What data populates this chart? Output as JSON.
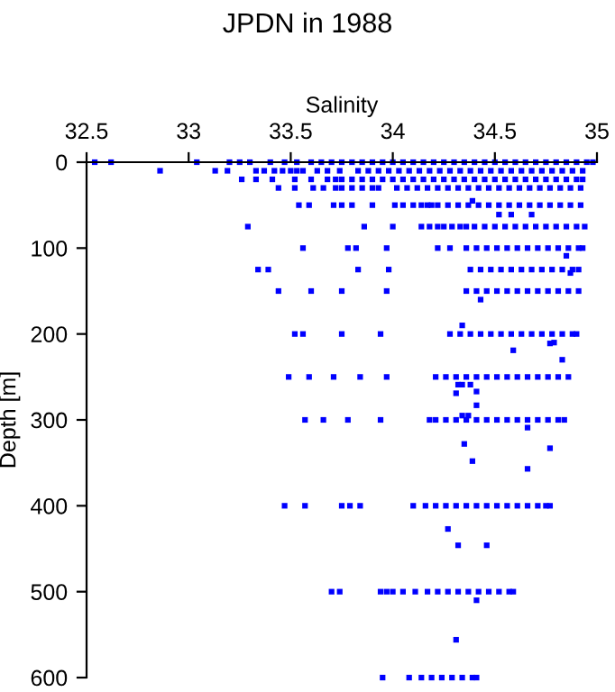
{
  "chart_data": {
    "type": "scatter",
    "title": "JPDN in 1988",
    "xlabel": "Salinity",
    "ylabel": "Depth [m]",
    "xlim": [
      32.5,
      35
    ],
    "xticks": [
      32.5,
      33,
      33.5,
      34,
      34.5,
      35
    ],
    "ylim": [
      600,
      0
    ],
    "yticks": [
      0,
      100,
      200,
      300,
      400,
      500,
      600
    ],
    "marker": "square",
    "grid": false,
    "series": [
      {
        "color": "#0000ff",
        "x": [
          32.54,
          32.62,
          33.04,
          33.2,
          33.25,
          33.3,
          33.4,
          33.47,
          33.53,
          33.6,
          33.65,
          33.7,
          33.75,
          33.8,
          33.85,
          33.9,
          33.95,
          34,
          34.05,
          34.1,
          34.15,
          34.2,
          34.25,
          34.3,
          34.35,
          34.4,
          34.45,
          34.5,
          34.55,
          34.6,
          34.65,
          34.7,
          34.75,
          34.8,
          34.85,
          34.9,
          34.95,
          34.98
        ],
        "values": [
          0,
          0,
          0,
          0,
          0,
          0,
          0,
          0,
          0,
          0,
          0,
          0,
          0,
          0,
          0,
          0,
          0,
          0,
          0,
          0,
          0,
          0,
          0,
          0,
          0,
          0,
          0,
          0,
          0,
          0,
          0,
          0,
          0,
          0,
          0,
          0,
          0,
          0
        ]
      },
      {
        "color": "#0000ff",
        "x": [
          32.86,
          33.13,
          33.19,
          33.33,
          33.37,
          33.42,
          33.46,
          33.5,
          33.53,
          33.56,
          33.63,
          33.68,
          33.74,
          33.83,
          33.88,
          33.93,
          33.98,
          34.03,
          34.08,
          34.13,
          34.18,
          34.23,
          34.28,
          34.33,
          34.38,
          34.43,
          34.48,
          34.53,
          34.58,
          34.63,
          34.68,
          34.73,
          34.78,
          34.83,
          34.88,
          34.93
        ],
        "values": [
          10,
          10,
          10,
          10,
          10,
          10,
          10,
          10,
          10,
          10,
          10,
          10,
          10,
          10,
          10,
          10,
          10,
          10,
          10,
          10,
          10,
          10,
          10,
          10,
          10,
          10,
          10,
          10,
          10,
          10,
          10,
          10,
          10,
          10,
          10,
          10
        ]
      },
      {
        "color": "#0000ff",
        "x": [
          33.26,
          33.33,
          33.41,
          33.52,
          33.6,
          33.68,
          33.72,
          33.75,
          33.8,
          33.85,
          33.9,
          33.95,
          34,
          34.05,
          34.1,
          34.15,
          34.2,
          34.25,
          34.3,
          34.35,
          34.4,
          34.45,
          34.5,
          34.55,
          34.6,
          34.65,
          34.7,
          34.75,
          34.8,
          34.85,
          34.9,
          34.93
        ],
        "values": [
          20,
          20,
          20,
          20,
          20,
          20,
          20,
          20,
          20,
          20,
          20,
          20,
          20,
          20,
          20,
          20,
          20,
          20,
          20,
          20,
          20,
          20,
          20,
          20,
          20,
          20,
          20,
          20,
          20,
          20,
          20,
          20
        ]
      },
      {
        "color": "#0000ff",
        "x": [
          33.44,
          33.52,
          33.61,
          33.66,
          33.72,
          33.75,
          33.8,
          33.85,
          33.9,
          33.93,
          34.02,
          34.07,
          34.12,
          34.17,
          34.22,
          34.27,
          34.32,
          34.37,
          34.42,
          34.47,
          34.52,
          34.57,
          34.62,
          34.67,
          34.72,
          34.77,
          34.82,
          34.87,
          34.92
        ],
        "values": [
          30,
          30,
          30,
          30,
          30,
          30,
          30,
          30,
          30,
          30,
          30,
          30,
          30,
          30,
          30,
          30,
          30,
          30,
          30,
          30,
          30,
          30,
          30,
          30,
          30,
          30,
          30,
          30,
          30
        ]
      },
      {
        "color": "#0000ff",
        "x": [
          33.54,
          33.59,
          33.71,
          33.75,
          33.8,
          33.9,
          34.01,
          34.05,
          34.1,
          34.14,
          34.17,
          34.19,
          34.22,
          34.27,
          34.32,
          34.37,
          34.42,
          34.47,
          34.52,
          34.57,
          34.62,
          34.67,
          34.72,
          34.77,
          34.82,
          34.87,
          34.92
        ],
        "values": [
          50,
          50,
          50,
          50,
          50,
          50,
          50,
          50,
          50,
          50,
          50,
          50,
          50,
          50,
          50,
          50,
          50,
          50,
          50,
          50,
          50,
          50,
          50,
          50,
          50,
          50,
          50
        ]
      },
      {
        "color": "#0000ff",
        "x": [
          33.29,
          33.86,
          34,
          34.14,
          34.18,
          34.22,
          34.25,
          34.29,
          34.33,
          34.36,
          34.4,
          34.45,
          34.5,
          34.55,
          34.6,
          34.65,
          34.7,
          34.75,
          34.8,
          34.85,
          34.9,
          34.94
        ],
        "values": [
          75,
          75,
          75,
          75,
          75,
          75,
          75,
          75,
          75,
          75,
          75,
          75,
          75,
          75,
          75,
          75,
          75,
          75,
          75,
          75,
          75,
          75
        ]
      },
      {
        "color": "#0000ff",
        "x": [
          33.56,
          33.78,
          33.82,
          33.97,
          34.22,
          34.28,
          34.36,
          34.41,
          34.46,
          34.51,
          34.56,
          34.61,
          34.66,
          34.71,
          34.76,
          34.81,
          34.86,
          34.91,
          34.93
        ],
        "values": [
          100,
          100,
          100,
          100,
          100,
          100,
          100,
          100,
          100,
          100,
          100,
          100,
          100,
          100,
          100,
          100,
          100,
          100,
          100
        ]
      },
      {
        "color": "#0000ff",
        "x": [
          33.34,
          33.39,
          33.83,
          33.98,
          34.38,
          34.43,
          34.48,
          34.53,
          34.58,
          34.63,
          34.68,
          34.73,
          34.78,
          34.83,
          34.88,
          34.91
        ],
        "values": [
          125,
          125,
          125,
          125,
          125,
          125,
          125,
          125,
          125,
          125,
          125,
          125,
          125,
          125,
          125,
          125
        ]
      },
      {
        "color": "#0000ff",
        "x": [
          33.44,
          33.6,
          33.75,
          33.97,
          34.36,
          34.41,
          34.46,
          34.51,
          34.56,
          34.61,
          34.66,
          34.71,
          34.76,
          34.81,
          34.86,
          34.91
        ],
        "values": [
          150,
          150,
          150,
          150,
          150,
          150,
          150,
          150,
          150,
          150,
          150,
          150,
          150,
          150,
          150,
          150
        ]
      },
      {
        "color": "#0000ff",
        "x": [
          33.52,
          33.56,
          33.75,
          33.94,
          34.28,
          34.33,
          34.38,
          34.43,
          34.48,
          34.53,
          34.58,
          34.63,
          34.68,
          34.73,
          34.78,
          34.83,
          34.88,
          34.9
        ],
        "values": [
          200,
          200,
          200,
          200,
          200,
          200,
          200,
          200,
          200,
          200,
          200,
          200,
          200,
          200,
          200,
          200,
          200,
          200
        ]
      },
      {
        "color": "#0000ff",
        "x": [
          33.49,
          33.59,
          33.71,
          33.84,
          33.97,
          34.21,
          34.26,
          34.31,
          34.36,
          34.41,
          34.46,
          34.51,
          34.56,
          34.61,
          34.66,
          34.71,
          34.76,
          34.81,
          34.86
        ],
        "values": [
          250,
          250,
          250,
          250,
          250,
          250,
          250,
          250,
          250,
          250,
          250,
          250,
          250,
          250,
          250,
          250,
          250,
          250,
          250
        ]
      },
      {
        "color": "#0000ff",
        "x": [
          33.57,
          33.66,
          33.78,
          33.94,
          34.18,
          34.21,
          34.26,
          34.31,
          34.36,
          34.41,
          34.46,
          34.51,
          34.56,
          34.61,
          34.66,
          34.71,
          34.76,
          34.81,
          34.84
        ],
        "values": [
          300,
          300,
          300,
          300,
          300,
          300,
          300,
          300,
          300,
          300,
          300,
          300,
          300,
          300,
          300,
          300,
          300,
          300,
          300
        ]
      },
      {
        "color": "#0000ff",
        "x": [
          33.47,
          33.57,
          33.75,
          33.79,
          33.84,
          34.1,
          34.16,
          34.21,
          34.26,
          34.31,
          34.36,
          34.41,
          34.46,
          34.51,
          34.56,
          34.61,
          34.66,
          34.71,
          34.75,
          34.77
        ],
        "values": [
          400,
          400,
          400,
          400,
          400,
          400,
          400,
          400,
          400,
          400,
          400,
          400,
          400,
          400,
          400,
          400,
          400,
          400,
          400,
          400
        ]
      },
      {
        "color": "#0000ff",
        "x": [
          33.7,
          33.74,
          33.94,
          33.97,
          34,
          34.05,
          34.11,
          34.17,
          34.22,
          34.27,
          34.32,
          34.37,
          34.42,
          34.47,
          34.52,
          34.57,
          34.59
        ],
        "values": [
          500,
          500,
          500,
          500,
          500,
          500,
          500,
          500,
          500,
          500,
          500,
          500,
          500,
          500,
          500,
          500,
          500
        ]
      },
      {
        "color": "#0000ff",
        "x": [
          33.95,
          34.08,
          34.14,
          34.19,
          34.24,
          34.29,
          34.34,
          34.39,
          34.41
        ],
        "values": [
          600,
          600,
          600,
          600,
          600,
          600,
          600,
          600,
          600
        ]
      },
      {
        "color": "#0000ff",
        "x": [
          34.39,
          34.52,
          34.58,
          34.68,
          34.85,
          34.87,
          34.43,
          34.34,
          34.77,
          34.79,
          34.59,
          34.83,
          34.32,
          34.34,
          34.38,
          34.41,
          34.31,
          34.41,
          34.34,
          34.37,
          34.66,
          34.35,
          34.77,
          34.39,
          34.66,
          34.27,
          34.32,
          34.46,
          34.41,
          34.31
        ],
        "values": [
          45,
          61,
          61,
          61,
          109,
          129,
          160,
          190,
          211,
          210,
          219,
          230,
          259,
          259,
          259,
          267,
          269,
          283,
          295,
          295,
          309,
          328,
          333,
          348,
          357,
          427,
          446,
          446,
          510,
          556
        ]
      }
    ]
  }
}
